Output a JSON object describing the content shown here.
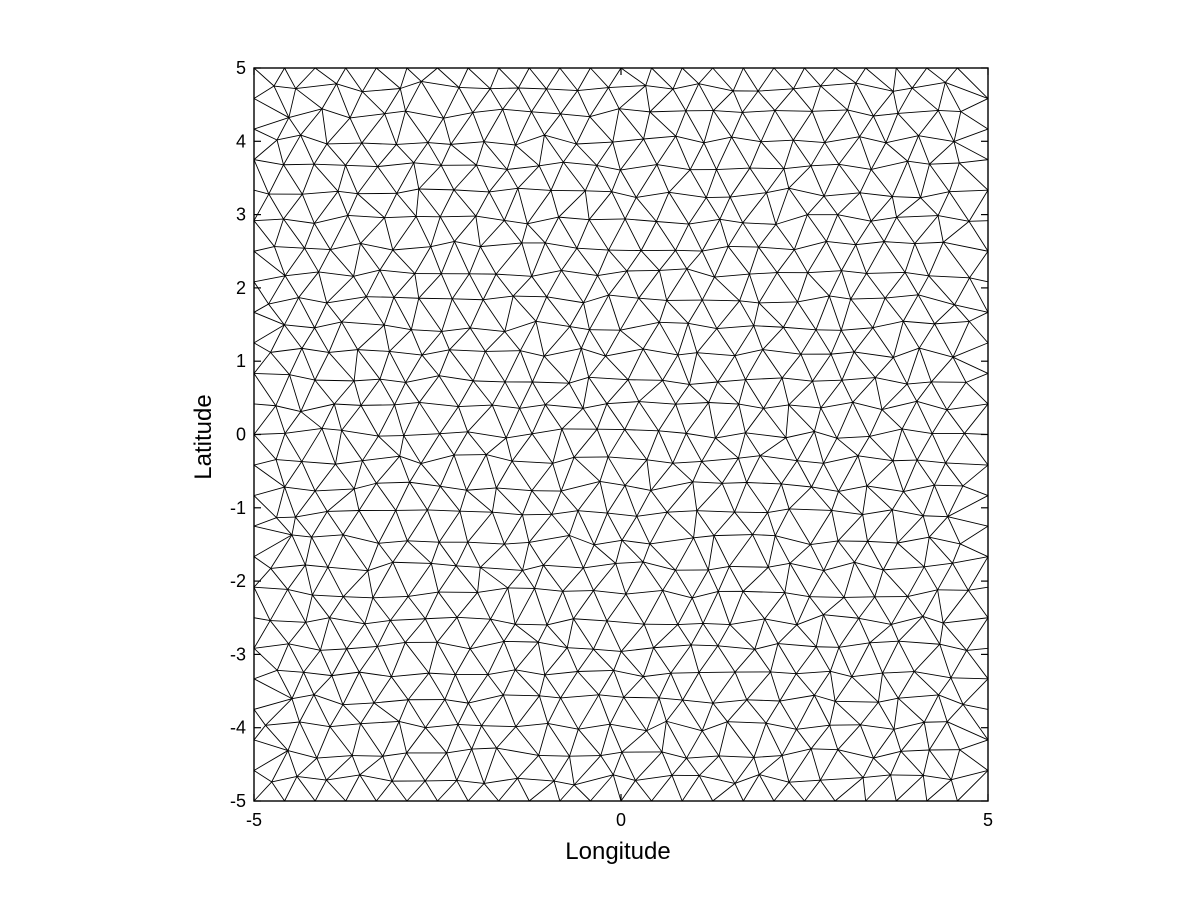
{
  "chart_data": {
    "type": "mesh",
    "title": "",
    "xlabel": "Longitude",
    "ylabel": "Latitude",
    "xlim": [
      -5,
      5
    ],
    "ylim": [
      -5,
      5
    ],
    "x_ticks": [
      "-5",
      "0",
      "5"
    ],
    "y_ticks": [
      "5",
      "4",
      "3",
      "2",
      "1",
      "0",
      "-1",
      "-2",
      "-3",
      "-4",
      "-5"
    ],
    "mesh": {
      "element_type": "triangle",
      "domain": "square",
      "target_edge_length": 0.42,
      "grid_lines": false
    }
  },
  "colors": {
    "background": "#ffffff",
    "mesh_line": "#000000",
    "axis": "#000000"
  }
}
